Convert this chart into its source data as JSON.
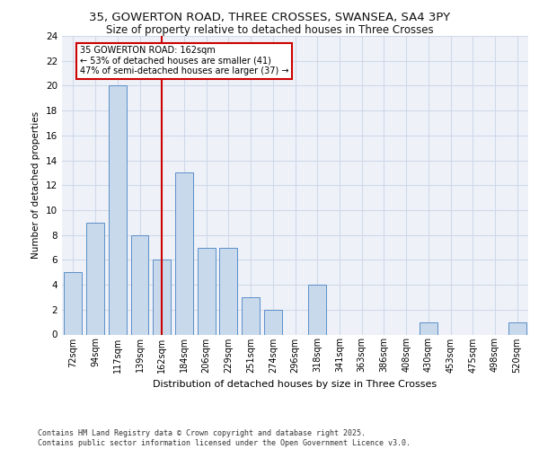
{
  "title_line1": "35, GOWERTON ROAD, THREE CROSSES, SWANSEA, SA4 3PY",
  "title_line2": "Size of property relative to detached houses in Three Crosses",
  "xlabel": "Distribution of detached houses by size in Three Crosses",
  "ylabel": "Number of detached properties",
  "categories": [
    "72sqm",
    "94sqm",
    "117sqm",
    "139sqm",
    "162sqm",
    "184sqm",
    "206sqm",
    "229sqm",
    "251sqm",
    "274sqm",
    "296sqm",
    "318sqm",
    "341sqm",
    "363sqm",
    "386sqm",
    "408sqm",
    "430sqm",
    "453sqm",
    "475sqm",
    "498sqm",
    "520sqm"
  ],
  "values": [
    5,
    9,
    20,
    8,
    6,
    13,
    7,
    7,
    3,
    2,
    0,
    4,
    0,
    0,
    0,
    0,
    1,
    0,
    0,
    0,
    1
  ],
  "bar_color": "#c9d9ec",
  "bar_edge_color": "#5b8fc9",
  "grid_color": "#d0d8e8",
  "background_color": "#eef2f8",
  "vline_x_index": 4,
  "vline_color": "#cc0000",
  "annotation_text": "35 GOWERTON ROAD: 162sqm\n← 53% of detached houses are smaller (41)\n47% of semi-detached houses are larger (37) →",
  "annotation_box_color": "white",
  "annotation_box_edge": "#cc0000",
  "ylim": [
    0,
    24
  ],
  "yticks": [
    0,
    2,
    4,
    6,
    8,
    10,
    12,
    14,
    16,
    18,
    20,
    22,
    24
  ],
  "footer_text": "Contains HM Land Registry data © Crown copyright and database right 2025.\nContains public sector information licensed under the Open Government Licence v3.0.",
  "title_fontsize": 9.5,
  "subtitle_fontsize": 8.5,
  "bar_width": 0.8
}
